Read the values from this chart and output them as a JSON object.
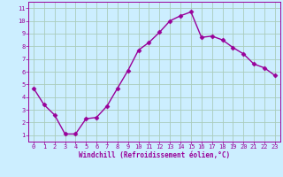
{
  "x": [
    0,
    1,
    2,
    3,
    4,
    5,
    6,
    7,
    8,
    9,
    10,
    11,
    12,
    13,
    14,
    15,
    16,
    17,
    18,
    19,
    20,
    21,
    22,
    23
  ],
  "y": [
    4.7,
    3.4,
    2.6,
    1.1,
    1.1,
    2.3,
    2.4,
    3.3,
    4.7,
    6.1,
    7.7,
    8.3,
    9.1,
    10.0,
    10.4,
    10.7,
    8.7,
    8.8,
    8.5,
    7.9,
    7.4,
    6.6,
    6.3,
    5.7
  ],
  "line_color": "#990099",
  "marker": "D",
  "markersize": 2.5,
  "linewidth": 1.0,
  "bg_color": "#cceeff",
  "grid_color": "#aaccbb",
  "xlabel": "Windchill (Refroidissement éolien,°C)",
  "xlabel_color": "#990099",
  "tick_color": "#990099",
  "xlim": [
    -0.5,
    23.5
  ],
  "ylim": [
    0.5,
    11.5
  ],
  "yticks": [
    1,
    2,
    3,
    4,
    5,
    6,
    7,
    8,
    9,
    10,
    11
  ],
  "xticks": [
    0,
    1,
    2,
    3,
    4,
    5,
    6,
    7,
    8,
    9,
    10,
    11,
    12,
    13,
    14,
    15,
    16,
    17,
    18,
    19,
    20,
    21,
    22,
    23
  ],
  "tick_fontsize": 5.0,
  "xlabel_fontsize": 5.5
}
